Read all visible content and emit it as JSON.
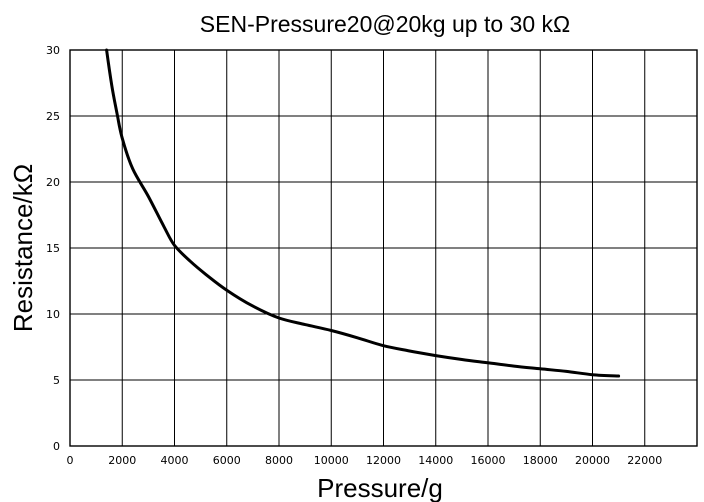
{
  "chart_data": {
    "type": "line",
    "title": "SEN-Pressure20@20kg up to 30 kΩ",
    "xlabel": "Pressure/g",
    "ylabel": "Resistance/kΩ",
    "xlim": [
      0,
      24000
    ],
    "ylim": [
      0,
      30
    ],
    "xticks": [
      0,
      2000,
      4000,
      6000,
      8000,
      10000,
      12000,
      14000,
      16000,
      18000,
      20000,
      22000
    ],
    "yticks": [
      0,
      5,
      10,
      15,
      20,
      25,
      30
    ],
    "grid": true,
    "series": [
      {
        "x": [
          1400,
          1600,
          1800,
          2000,
          2400,
          3000,
          3600,
          4000,
          4600,
          5200,
          6000,
          7000,
          8000,
          9000,
          10000,
          11000,
          12000,
          13000,
          14000,
          15000,
          16000,
          17000,
          18000,
          19000,
          20000,
          21000
        ],
        "y": [
          30,
          27.3,
          25.2,
          23.3,
          21.0,
          18.9,
          16.6,
          15.2,
          14.0,
          13.0,
          11.8,
          10.6,
          9.7,
          9.2,
          8.75,
          8.2,
          7.6,
          7.2,
          6.85,
          6.55,
          6.3,
          6.05,
          5.85,
          5.65,
          5.4,
          5.3
        ]
      }
    ]
  }
}
